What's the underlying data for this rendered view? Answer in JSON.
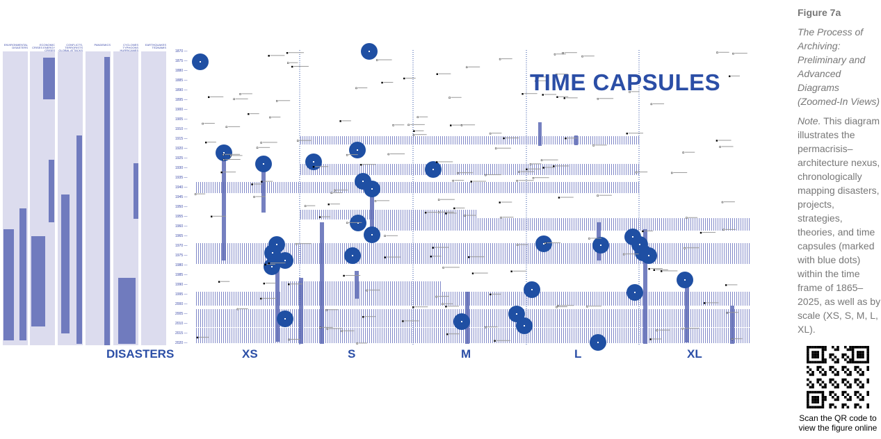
{
  "figure": {
    "label": "Figure 7a",
    "subtitle": "The Process of Archiving: Preliminary and Advanced Diagrams (Zoomed-In Views)",
    "note_label": "Note.",
    "note": " This diagram illustrates the permacrisis–architecture nexus, chronologically mapping disasters, projects, strategies, theories, and time capsules (marked with blue dots) within the time frame of 1865–2025, as well as by scale (XS, S, M, L, XL).",
    "qr_caption": "Scan the QR code to view the figure online"
  },
  "diagram": {
    "title": "TIME CAPSULES",
    "disaster_columns": [
      "ENVIRONMENTAL DISASTERS",
      "ECONOMIC CRISES ENERGY CRISES",
      "CONFLICTS, TERRORISTS GLOBAL ATTACKS",
      "PANDEMICS",
      "CYCLONES TYPHOONS HURRICANES FLOODS",
      "EARTHQUAKES TSUNAMIS"
    ],
    "years": [
      "1870",
      "1875",
      "1880",
      "1885",
      "1890",
      "1895",
      "1900",
      "1905",
      "1910",
      "1915",
      "1920",
      "1925",
      "1930",
      "1935",
      "1940",
      "1945",
      "1950",
      "1955",
      "1960",
      "1965",
      "1970",
      "1975",
      "1980",
      "1985",
      "1990",
      "1995",
      "2000",
      "2005",
      "2010",
      "2015",
      "2020"
    ],
    "scale_labels": [
      "DISASTERS",
      "XS",
      "S",
      "M",
      "L",
      "XL"
    ],
    "colors": {
      "accent": "#2b4ea6",
      "capsule": "#1f4fa3",
      "bar": "#5d6ab5",
      "panel": "#dcdcee"
    }
  }
}
